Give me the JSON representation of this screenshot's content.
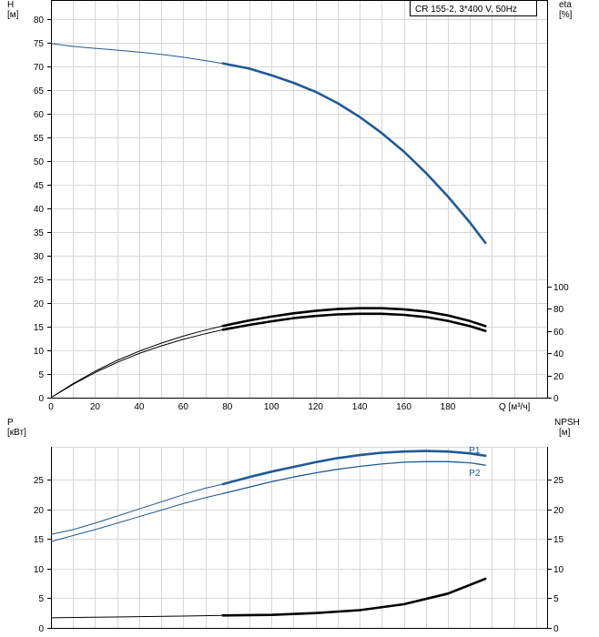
{
  "chart_data": [
    {
      "type": "line",
      "panel": "head-efficiency",
      "legend_title": "CR 155-2, 3*400 V, 50Hz",
      "legend_placement": "top-right",
      "left_axis": {
        "label_line1": "H",
        "label_line2": "[м]",
        "ticks": [
          0,
          5,
          10,
          15,
          20,
          25,
          30,
          35,
          40,
          45,
          50,
          55,
          60,
          65,
          70,
          75,
          80
        ],
        "range": [
          0,
          84
        ]
      },
      "right_axis": {
        "label_line1": "eta",
        "label_line2": "[%]",
        "ticks": [
          0,
          20,
          40,
          60,
          80,
          100
        ],
        "range": [
          0,
          100
        ]
      },
      "x_axis": {
        "label": "Q [м³/ч]",
        "ticks": [
          0,
          20,
          40,
          60,
          80,
          100,
          120,
          140,
          160,
          180
        ],
        "range": [
          0,
          225
        ],
        "grid_step": 10
      },
      "grid": true,
      "series": [
        {
          "id": "H",
          "axis": "left",
          "color": "#1f5a96",
          "thin_part": [
            [
              0,
              74.8
            ],
            [
              10,
              74.2
            ],
            [
              20,
              73.8
            ],
            [
              30,
              73.4
            ],
            [
              40,
              73.0
            ],
            [
              50,
              72.5
            ],
            [
              60,
              71.9
            ],
            [
              70,
              71.2
            ],
            [
              78,
              70.6
            ]
          ],
          "thick_part": [
            [
              78,
              70.6
            ],
            [
              90,
              69.5
            ],
            [
              100,
              68.1
            ],
            [
              110,
              66.5
            ],
            [
              120,
              64.6
            ],
            [
              130,
              62.2
            ],
            [
              140,
              59.3
            ],
            [
              150,
              55.9
            ],
            [
              160,
              52.0
            ],
            [
              170,
              47.5
            ],
            [
              180,
              42.5
            ],
            [
              190,
              37.0
            ],
            [
              197,
              32.7
            ]
          ]
        },
        {
          "id": "eta-upper",
          "axis": "right",
          "color": "#000000",
          "thin_part": [
            [
              0,
              0
            ],
            [
              10,
              12.6
            ],
            [
              20,
              23.8
            ],
            [
              30,
              33.6
            ],
            [
              40,
              41.9
            ],
            [
              50,
              49.1
            ],
            [
              60,
              55.4
            ],
            [
              70,
              60.9
            ],
            [
              78,
              64.7
            ]
          ],
          "thick_part": [
            [
              78,
              64.7
            ],
            [
              90,
              69.6
            ],
            [
              100,
              73.0
            ],
            [
              110,
              76.0
            ],
            [
              120,
              78.2
            ],
            [
              130,
              79.8
            ],
            [
              140,
              80.6
            ],
            [
              150,
              80.6
            ],
            [
              160,
              79.6
            ],
            [
              170,
              77.6
            ],
            [
              180,
              74.1
            ],
            [
              190,
              69.0
            ],
            [
              197,
              64.5
            ]
          ]
        },
        {
          "id": "eta-lower",
          "axis": "right",
          "color": "#000000",
          "thin_part": [
            [
              0,
              0
            ],
            [
              10,
              12.0
            ],
            [
              20,
              22.6
            ],
            [
              30,
              31.8
            ],
            [
              40,
              39.8
            ],
            [
              50,
              46.6
            ],
            [
              60,
              52.5
            ],
            [
              70,
              57.6
            ],
            [
              78,
              61.2
            ]
          ],
          "thick_part": [
            [
              78,
              61.2
            ],
            [
              90,
              65.6
            ],
            [
              100,
              68.8
            ],
            [
              110,
              71.6
            ],
            [
              120,
              73.6
            ],
            [
              130,
              75.0
            ],
            [
              140,
              75.6
            ],
            [
              150,
              75.6
            ],
            [
              160,
              74.6
            ],
            [
              170,
              72.6
            ],
            [
              180,
              69.2
            ],
            [
              190,
              64.4
            ],
            [
              197,
              60.2
            ]
          ]
        }
      ]
    },
    {
      "type": "line",
      "panel": "power-npsh",
      "left_axis": {
        "label_line1": "P",
        "label_line2": "[кВт]",
        "ticks": [
          0,
          5,
          10,
          15,
          20,
          25
        ],
        "range": [
          0,
          30.6
        ]
      },
      "right_axis": {
        "label_line1": "NPSH",
        "label_line2": "[м]",
        "ticks": [
          0,
          5,
          10,
          15,
          20,
          25
        ],
        "range": [
          0,
          30.6
        ]
      },
      "x_axis": {
        "range": [
          0,
          225
        ],
        "grid_step": 10
      },
      "grid": true,
      "series": [
        {
          "id": "P1",
          "name": "P1",
          "axis": "left",
          "color": "#1f5a96",
          "thin_part": [
            [
              0,
              15.8
            ],
            [
              10,
              16.6
            ],
            [
              20,
              17.7
            ],
            [
              30,
              18.9
            ],
            [
              40,
              20.1
            ],
            [
              50,
              21.3
            ],
            [
              60,
              22.5
            ],
            [
              70,
              23.6
            ],
            [
              78,
              24.3
            ]
          ],
          "thick_part": [
            [
              78,
              24.3
            ],
            [
              90,
              25.5
            ],
            [
              100,
              26.4
            ],
            [
              110,
              27.2
            ],
            [
              120,
              28.0
            ],
            [
              130,
              28.7
            ],
            [
              140,
              29.2
            ],
            [
              150,
              29.6
            ],
            [
              160,
              29.8
            ],
            [
              170,
              29.9
            ],
            [
              180,
              29.8
            ],
            [
              190,
              29.5
            ],
            [
              197,
              29.1
            ]
          ]
        },
        {
          "id": "P2",
          "name": "P2",
          "axis": "left",
          "color": "#1f5a96",
          "thin_part": [
            [
              0,
              14.6
            ],
            [
              10,
              15.6
            ],
            [
              20,
              16.6
            ],
            [
              30,
              17.7
            ],
            [
              40,
              18.8
            ],
            [
              50,
              19.9
            ],
            [
              60,
              21.0
            ],
            [
              70,
              22.0
            ],
            [
              78,
              22.7
            ]
          ],
          "thick_part": [
            [
              78,
              22.7
            ],
            [
              90,
              23.8
            ],
            [
              100,
              24.7
            ],
            [
              110,
              25.5
            ],
            [
              120,
              26.2
            ],
            [
              130,
              26.8
            ],
            [
              140,
              27.3
            ],
            [
              150,
              27.7
            ],
            [
              160,
              28.0
            ],
            [
              170,
              28.1
            ],
            [
              180,
              28.1
            ],
            [
              190,
              27.9
            ],
            [
              197,
              27.5
            ]
          ],
          "thick": false
        },
        {
          "id": "NPSH",
          "axis": "right",
          "color": "#000000",
          "thin_part": [
            [
              0,
              1.7
            ],
            [
              20,
              1.8
            ],
            [
              40,
              1.9
            ],
            [
              60,
              2.0
            ],
            [
              78,
              2.1
            ]
          ],
          "thick_part": [
            [
              78,
              2.1
            ],
            [
              100,
              2.2
            ],
            [
              120,
              2.5
            ],
            [
              140,
              3.0
            ],
            [
              160,
              4.0
            ],
            [
              180,
              5.8
            ],
            [
              197,
              8.3
            ]
          ]
        }
      ]
    }
  ]
}
